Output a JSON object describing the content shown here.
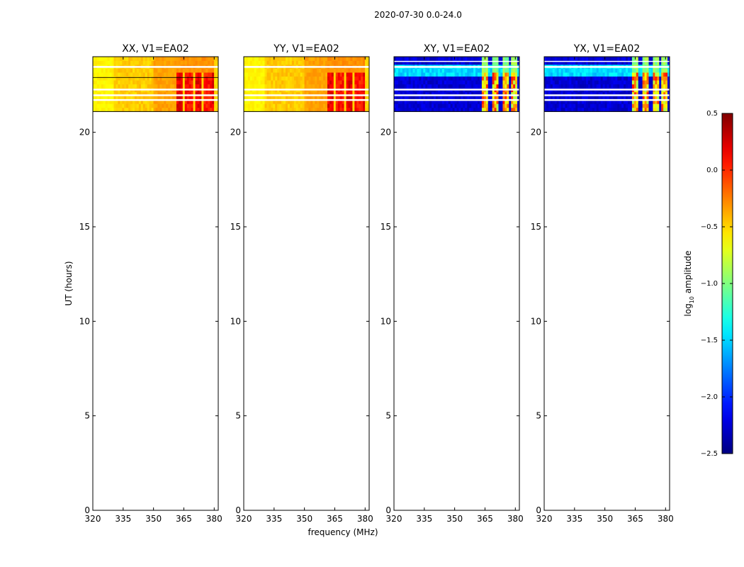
{
  "suptitle": "2020-07-30 0.0-24.0",
  "chart_data": [
    {
      "type": "heatmap",
      "title": "XX, V1=EA02",
      "xlabel": "",
      "ylabel": "UT (hours)",
      "xlim": [
        320,
        382
      ],
      "ylim": [
        0,
        24
      ],
      "xticks": [
        "320",
        "335",
        "350",
        "365",
        "380"
      ],
      "yticks": [
        "0",
        "5",
        "10",
        "15",
        "20"
      ],
      "data_extent_hours": [
        21.1,
        24.0
      ],
      "colormap": "jet",
      "pattern": "high amplitude (yellow/orange, ~-0.6 to -0.2 log10) across band, stronger red/dark-red columns between 362 and 379 MHz; white flagged rows near 23.4, 22.2 and 21.9 h"
    },
    {
      "type": "heatmap",
      "title": "YY, V1=EA02",
      "xlabel": "frequency (MHz)",
      "ylabel": "",
      "xlim": [
        320,
        382
      ],
      "ylim": [
        0,
        24
      ],
      "xticks": [
        "320",
        "335",
        "350",
        "365",
        "380"
      ],
      "yticks": [
        "0",
        "5",
        "10",
        "15",
        "20"
      ],
      "data_extent_hours": [
        21.1,
        24.0
      ],
      "colormap": "jet",
      "pattern": "high amplitude (yellow/orange) across band, red/dark-red columns between 360 and 379 MHz; white flagged rows near 22.2 and 21.9 h"
    },
    {
      "type": "heatmap",
      "title": "XY, V1=EA02",
      "xlabel": "",
      "ylabel": "",
      "xlim": [
        320,
        382
      ],
      "ylim": [
        0,
        24
      ],
      "xticks": [
        "320",
        "335",
        "350",
        "365",
        "380"
      ],
      "yticks": [
        "0",
        "5",
        "10",
        "15",
        "20"
      ],
      "data_extent_hours": [
        21.1,
        24.0
      ],
      "colormap": "jet",
      "pattern": "low amplitude (blue, ~-2.3 log10) with cyan band near 23.3 h; four bright spectral channel groups near 364, 369, 374, 379 MHz (cyan to red)"
    },
    {
      "type": "heatmap",
      "title": "YX, V1=EA02",
      "xlabel": "",
      "ylabel": "",
      "xlim": [
        320,
        382
      ],
      "ylim": [
        0,
        24
      ],
      "xticks": [
        "320",
        "335",
        "350",
        "365",
        "380"
      ],
      "yticks": [
        "0",
        "5",
        "10",
        "15",
        "20"
      ],
      "data_extent_hours": [
        21.1,
        24.0
      ],
      "colormap": "jet",
      "pattern": "low amplitude (blue) with cyan band near 23.3 h; four bright channel groups near 364, 369, 374, 379 MHz"
    }
  ],
  "colorbar": {
    "label_prefix": "log",
    "label_sub": "10",
    "label_suffix": " amplitude",
    "range": [
      -2.5,
      0.5
    ],
    "ticks": [
      "0.5",
      "0.0",
      "−0.5",
      "−1.0",
      "−1.5",
      "−2.0",
      "−2.5"
    ],
    "colormap": "jet"
  }
}
